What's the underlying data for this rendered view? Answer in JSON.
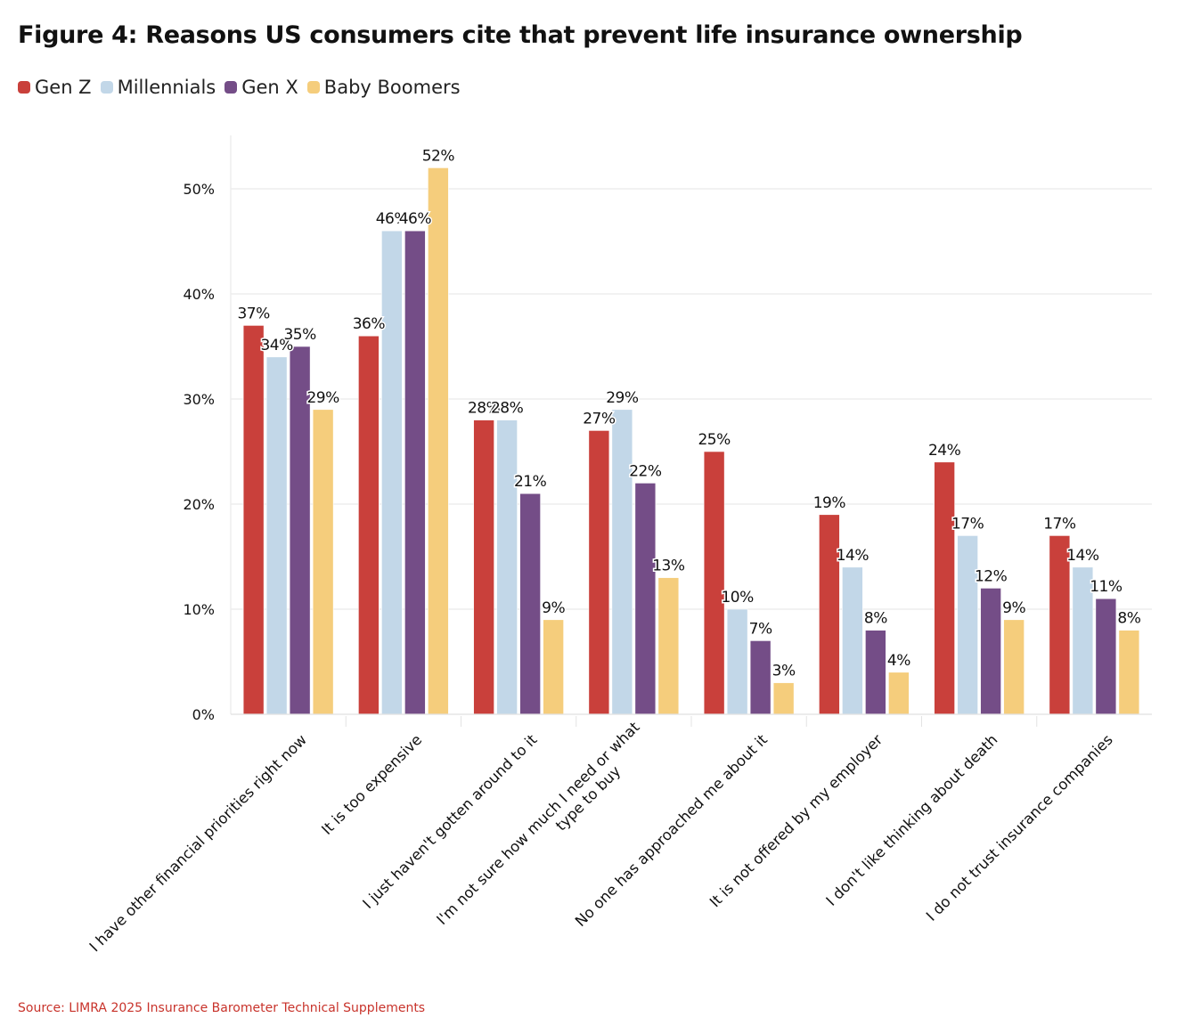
{
  "page": {
    "title": "Figure 4: Reasons US consumers cite that prevent life insurance ownership",
    "source": "Source: LIMRA 2025 Insurance Barometer Technical Supplements"
  },
  "chart_data": {
    "type": "bar",
    "title": "Figure 4: Reasons US consumers cite that prevent life insurance ownership",
    "xlabel": "",
    "ylabel": "",
    "ylim": [
      0,
      55
    ],
    "yticks": [
      0,
      10,
      20,
      30,
      40,
      50
    ],
    "ytick_labels": [
      "0%",
      "10%",
      "20%",
      "30%",
      "40%",
      "50%"
    ],
    "grid": true,
    "legend_position": "top-left",
    "categories": [
      "I have other financial priorities right now",
      "It is too expensive",
      "I just haven't gotten around to it",
      "I'm not sure how much I need or what type to buy",
      "No one has approached me about it",
      "It is not offered by my employer",
      "I don't like thinking about death",
      "I do not trust insurance companies"
    ],
    "category_lines": [
      [
        "I have other financial priorities right now"
      ],
      [
        "It is too expensive"
      ],
      [
        "I just haven't gotten around to it"
      ],
      [
        "I'm not sure how much I need or what",
        "type to buy"
      ],
      [
        "No one has approached me about it"
      ],
      [
        "It is not offered by my employer"
      ],
      [
        "I don't like thinking about death"
      ],
      [
        "I do not trust insurance companies"
      ]
    ],
    "series": [
      {
        "name": "Gen Z",
        "color": "#c9403b",
        "values": [
          37,
          36,
          28,
          27,
          25,
          19,
          24,
          17
        ]
      },
      {
        "name": "Millennials",
        "color": "#c2d7e8",
        "values": [
          34,
          46,
          28,
          29,
          10,
          14,
          17,
          14
        ]
      },
      {
        "name": "Gen X",
        "color": "#744d87",
        "values": [
          35,
          46,
          21,
          22,
          7,
          8,
          12,
          11
        ]
      },
      {
        "name": "Baby Boomers",
        "color": "#f5cd7c",
        "values": [
          29,
          52,
          9,
          13,
          3,
          4,
          9,
          8
        ]
      }
    ],
    "value_format": "{v}%"
  }
}
